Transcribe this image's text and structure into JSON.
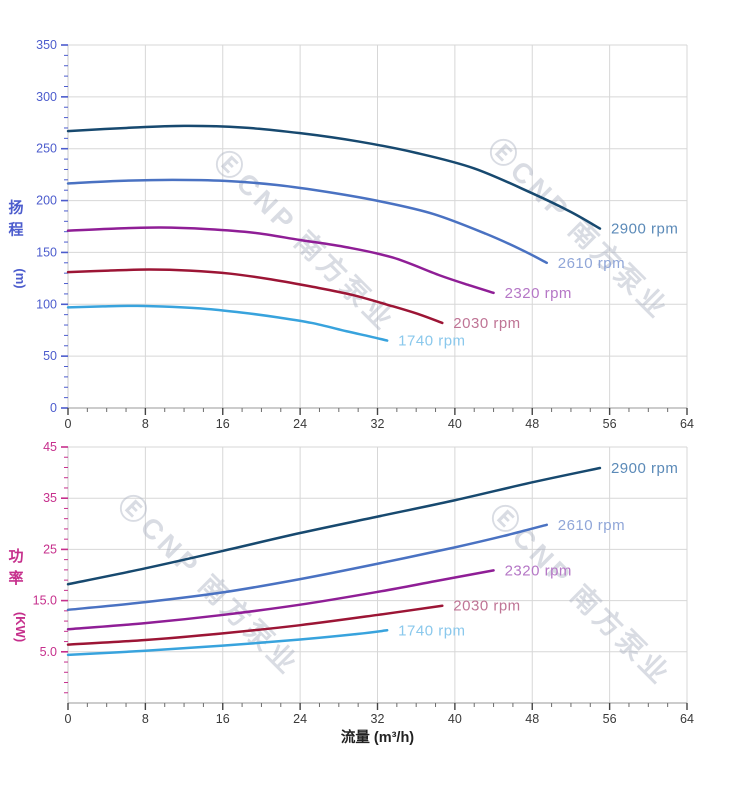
{
  "watermark": {
    "text": "ⒺCNP 南方泵业",
    "color": "#aab1c0"
  },
  "grid_color": "#d7d7d7",
  "x_axis": {
    "title": "流量 (m³/h)",
    "min": 0,
    "max": 64,
    "major_step": 8,
    "minor_step": 2,
    "major_labels": [
      "0",
      "8",
      "16",
      "24",
      "32",
      "40",
      "48",
      "56",
      "64"
    ],
    "label_color": "#3a3a3a",
    "title_color": "#222222"
  },
  "chart_data": [
    {
      "type": "line",
      "name": "head-vs-flow",
      "title": "",
      "xlabel": "流量 (m³/h)",
      "ylabel": "扬程 (m)",
      "ylabel_chars": "扬程",
      "ylabel_unit": "(m)",
      "axis_color": "#4c5ccd",
      "x_range": [
        0,
        64
      ],
      "y_min": 0,
      "y_max": 350,
      "y_major_step": 50,
      "y_minor_step": 10,
      "y_major_labels": [
        "0",
        "50",
        "100",
        "150",
        "200",
        "250",
        "300",
        "350"
      ],
      "legend_position": "at-curve-end",
      "grid": true,
      "series": [
        {
          "name": "2900 rpm",
          "color": "#17496f",
          "label_color": "#5b8ab8",
          "points": [
            [
              0,
              267
            ],
            [
              6,
              270
            ],
            [
              12,
              272
            ],
            [
              18,
              270.5
            ],
            [
              24,
              265
            ],
            [
              30,
              257
            ],
            [
              36,
              246
            ],
            [
              42,
              231
            ],
            [
              48,
              207
            ],
            [
              52,
              189
            ],
            [
              55,
              173
            ]
          ]
        },
        {
          "name": "2610 rpm",
          "color": "#4a72c2",
          "label_color": "#90a6d8",
          "points": [
            [
              0,
              216.5
            ],
            [
              5.4,
              219
            ],
            [
              10.8,
              220
            ],
            [
              16.2,
              219
            ],
            [
              21.6,
              215
            ],
            [
              27,
              208
            ],
            [
              32.4,
              199
            ],
            [
              37.8,
              187
            ],
            [
              43.2,
              168
            ],
            [
              46.8,
              153
            ],
            [
              49.5,
              140
            ]
          ]
        },
        {
          "name": "2320 rpm",
          "color": "#8f1e96",
          "label_color": "#b577c6",
          "points": [
            [
              0,
              171
            ],
            [
              4.8,
              173
            ],
            [
              9.6,
              174
            ],
            [
              14.4,
              172.5
            ],
            [
              19.2,
              169
            ],
            [
              24,
              162
            ],
            [
              28.8,
              155
            ],
            [
              33.6,
              145
            ],
            [
              38.4,
              128
            ],
            [
              41.6,
              118
            ],
            [
              44,
              111
            ]
          ]
        },
        {
          "name": "2030 rpm",
          "color": "#9c1535",
          "label_color": "#bf7495",
          "points": [
            [
              0,
              131
            ],
            [
              4.2,
              132.5
            ],
            [
              8.4,
              133.5
            ],
            [
              12.6,
              132.5
            ],
            [
              16.8,
              129.5
            ],
            [
              21,
              124
            ],
            [
              25.2,
              117
            ],
            [
              29.4,
              109
            ],
            [
              33.6,
              98
            ],
            [
              36.4,
              90
            ],
            [
              38.7,
              82
            ]
          ]
        },
        {
          "name": "1740 rpm",
          "color": "#38a3dd",
          "label_color": "#8ac8ec",
          "points": [
            [
              0,
              97
            ],
            [
              3.6,
              98
            ],
            [
              7.2,
              98.5
            ],
            [
              10.8,
              97.5
            ],
            [
              14.4,
              95.5
            ],
            [
              18,
              92
            ],
            [
              21.6,
              87.5
            ],
            [
              25.2,
              82
            ],
            [
              28.8,
              74
            ],
            [
              31.2,
              69
            ],
            [
              33,
              65
            ]
          ]
        }
      ]
    },
    {
      "type": "line",
      "name": "power-vs-flow",
      "title": "",
      "xlabel": "流量 (m³/h)",
      "ylabel": "功率 (KW)",
      "ylabel_chars": "功率",
      "ylabel_unit": "(KW)",
      "axis_color": "#c62f8c",
      "x_range": [
        0,
        64
      ],
      "y_min": -5,
      "y_max": 45,
      "y_minor_step": 2,
      "y_major_ticks": [
        {
          "value": 5,
          "label": "5.0"
        },
        {
          "value": 15,
          "label": "15.0"
        },
        {
          "value": 25,
          "label": "25"
        },
        {
          "value": 35,
          "label": "35"
        },
        {
          "value": 45,
          "label": "45"
        }
      ],
      "legend_position": "at-curve-end",
      "grid": true,
      "series": [
        {
          "name": "2900 rpm",
          "color": "#17496f",
          "label_color": "#5b8ab8",
          "points": [
            [
              0,
              18.2
            ],
            [
              8,
              21.3
            ],
            [
              16,
              24.7
            ],
            [
              24,
              28.2
            ],
            [
              32,
              31.4
            ],
            [
              40,
              34.6
            ],
            [
              48,
              38.1
            ],
            [
              55,
              40.9
            ]
          ]
        },
        {
          "name": "2610 rpm",
          "color": "#4a72c2",
          "label_color": "#90a6d8",
          "points": [
            [
              0,
              13.2
            ],
            [
              8,
              14.7
            ],
            [
              16,
              16.6
            ],
            [
              24,
              19.2
            ],
            [
              32,
              22.2
            ],
            [
              40,
              25.4
            ],
            [
              45,
              27.6
            ],
            [
              49.5,
              29.8
            ]
          ]
        },
        {
          "name": "2320 rpm",
          "color": "#8f1e96",
          "label_color": "#b577c6",
          "points": [
            [
              0,
              9.4
            ],
            [
              8,
              10.6
            ],
            [
              16,
              12.2
            ],
            [
              24,
              14.2
            ],
            [
              32,
              16.7
            ],
            [
              38,
              18.8
            ],
            [
              44,
              20.9
            ]
          ]
        },
        {
          "name": "2030 rpm",
          "color": "#9c1535",
          "label_color": "#bf7495",
          "points": [
            [
              0,
              6.4
            ],
            [
              8,
              7.3
            ],
            [
              16,
              8.6
            ],
            [
              24,
              10.2
            ],
            [
              32,
              12.2
            ],
            [
              38.7,
              14
            ]
          ]
        },
        {
          "name": "1740 rpm",
          "color": "#38a3dd",
          "label_color": "#8ac8ec",
          "points": [
            [
              0,
              4.4
            ],
            [
              8,
              5.2
            ],
            [
              16,
              6.2
            ],
            [
              24,
              7.4
            ],
            [
              30,
              8.5
            ],
            [
              33,
              9.2
            ]
          ]
        }
      ]
    }
  ]
}
